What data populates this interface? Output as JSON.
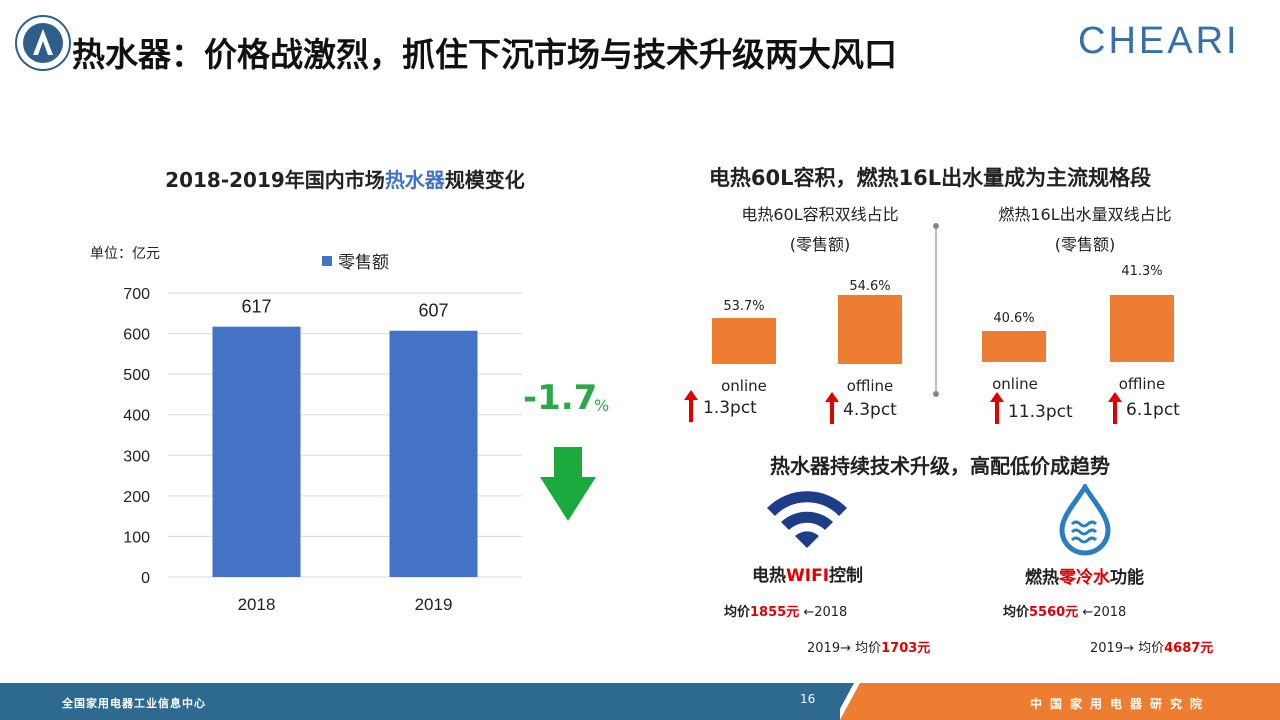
{
  "header": {
    "title": "热水器：价格战激烈，抓住下沉市场与技术升级两大风口",
    "brand": "CHEARI",
    "brand_color": "#3670a8"
  },
  "left_chart": {
    "title_prefix": "2018-2019年国内市场",
    "title_highlight": "热水器",
    "title_suffix": "规模变化",
    "unit": "单位：亿元",
    "change_value": "-1.7",
    "change_unit": "%"
  },
  "chart_data": {
    "type": "bar",
    "categories": [
      "2018",
      "2019"
    ],
    "series": [
      {
        "name": "零售额",
        "values": [
          617,
          607
        ],
        "color": "#4472c4"
      }
    ],
    "data_labels": [
      "617",
      "607"
    ],
    "y_ticks": [
      "0",
      "100",
      "200",
      "300",
      "400",
      "500",
      "600",
      "700"
    ],
    "ylim": [
      0,
      700
    ],
    "grid": true,
    "legend": "top"
  },
  "right_top": {
    "title": "电热60L容积，燃热16L出水量成为主流规格段",
    "group1": {
      "title_line1": "电热60L容积双线占比",
      "title_line2": "(零售额)",
      "bars": [
        {
          "value_label": "53.7%",
          "value": 53.7,
          "channel": "online",
          "change": "1.3pct"
        },
        {
          "value_label": "54.6%",
          "value": 54.6,
          "channel": "offline",
          "change": "4.3pct"
        }
      ]
    },
    "group2": {
      "title_line1": "燃热16L出水量双线占比",
      "title_line2": "(零售额)",
      "bars": [
        {
          "value_label": "40.6%",
          "value": 40.6,
          "channel": "online",
          "change": "11.3pct"
        },
        {
          "value_label": "41.3%",
          "value": 41.3,
          "channel": "offline",
          "change": "6.1pct"
        }
      ]
    },
    "bar_color": "#ed7d31"
  },
  "right_bottom": {
    "title": "热水器持续技术升级，高配低价成趋势",
    "feature1": {
      "label_prefix": "电热",
      "label_highlight": "WIFI",
      "label_suffix": "控制",
      "price_2018_prefix": "均价",
      "price_2018_value": "1855元",
      "price_2018_suffix": "←2018",
      "price_2019_prefix": "2019→ 均价",
      "price_2019_value": "1703元"
    },
    "feature2": {
      "label_prefix": "燃热",
      "label_highlight": "零冷水",
      "label_suffix": "功能",
      "price_2018_prefix": "均价",
      "price_2018_value": "5560元",
      "price_2018_suffix": "←2018",
      "price_2019_prefix": "2019→ 均价",
      "price_2019_value": "4687元"
    }
  },
  "footer": {
    "left": "全国家用电器工业信息中心",
    "page": "16",
    "right": "中国家用电器研究院"
  }
}
